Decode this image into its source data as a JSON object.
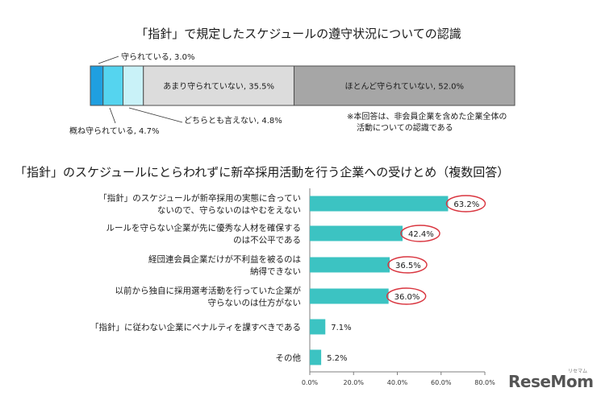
{
  "chart_data": [
    {
      "type": "bar",
      "orientation": "horizontal-stacked-100",
      "title": "「指針」で規定したスケジュールの遵守状況についての認識",
      "categories": [
        "守られている",
        "概ね守られている",
        "どちらとも言えない",
        "あまり守られていない",
        "ほとんど守られていない"
      ],
      "values": [
        3.0,
        4.7,
        4.8,
        35.5,
        52.0
      ],
      "labels": [
        "守られている, 3.0%",
        "概ね守られている, 4.7%",
        "どちらとも言えない, 4.8%",
        "あまり守られていない, 35.5%",
        "ほとんど守られていない, 52.0%"
      ],
      "colors": [
        "#1f9fe0",
        "#55d4ef",
        "#c9f2f8",
        "#dcdcdc",
        "#a6a6a6"
      ],
      "note": [
        "※本回答は、非会員企業を含めた企業全体の",
        "活動についての認識である"
      ]
    },
    {
      "type": "bar",
      "orientation": "horizontal",
      "title": "「指針」のスケジュールにとらわれずに新卒採用活動を行う企業への受けとめ（複数回答）",
      "categories": [
        [
          "「指針」のスケジュールが新卒採用の実態に合ってい",
          "ないので、守らないのはやむをえない"
        ],
        [
          "ルールを守らない企業が先に優秀な人材を確保する",
          "のは不公平である"
        ],
        [
          "経団連会員企業だけが不利益を被るのは",
          "納得できない"
        ],
        [
          "以前から独自に採用選考活動を行っていた企業が",
          "守らないのは仕方がない"
        ],
        [
          "「指針」に従わない企業にペナルティを課すべきである"
        ],
        [
          "その他"
        ]
      ],
      "values": [
        63.2,
        42.4,
        36.5,
        36.0,
        7.1,
        5.2
      ],
      "value_labels": [
        "63.2%",
        "42.4%",
        "36.5%",
        "36.0%",
        "7.1%",
        "5.2%"
      ],
      "circled": [
        true,
        true,
        true,
        true,
        false,
        false
      ],
      "xlim": [
        0,
        80
      ],
      "xticks": [
        "0.0%",
        "20.0%",
        "40.0%",
        "60.0%",
        "80.0%"
      ],
      "bar_color": "#3cc3c2",
      "circle_color": "#d9353f"
    }
  ],
  "watermark": {
    "text": "ReseMom",
    "small": "リセマム"
  }
}
